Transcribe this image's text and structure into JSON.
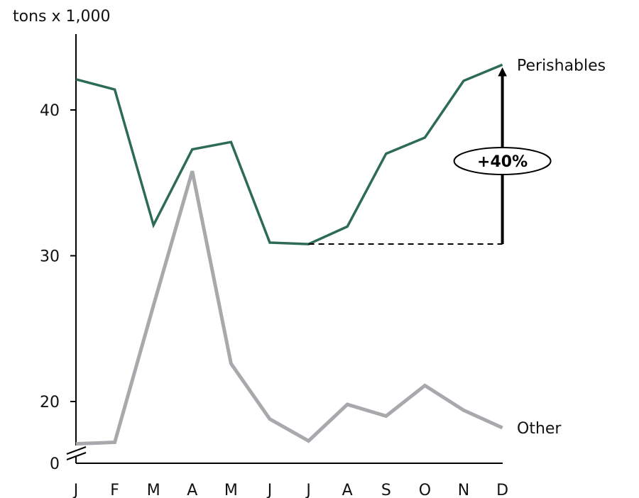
{
  "chart_data": {
    "type": "line",
    "y_unit_label": "tons x 1,000",
    "categories": [
      "J",
      "F",
      "M",
      "A",
      "M",
      "J",
      "J",
      "A",
      "S",
      "O",
      "N",
      "D"
    ],
    "y_ticks": [
      {
        "value": 0,
        "label": "0"
      },
      {
        "value": 20,
        "label": "20"
      },
      {
        "value": 30,
        "label": "30"
      },
      {
        "value": 40,
        "label": "40"
      }
    ],
    "y_axis_break": true,
    "y_break_between": [
      0,
      17
    ],
    "ylim": [
      0,
      45
    ],
    "grid": false,
    "legend": "inline labels at line ends",
    "series": [
      {
        "name": "Perishables",
        "color": "#2e6b55",
        "values": [
          42.1,
          41.4,
          32.1,
          37.3,
          37.8,
          30.9,
          30.8,
          32.0,
          37.0,
          38.1,
          42.0,
          43.1
        ]
      },
      {
        "name": "Other",
        "color": "#a8a9ad",
        "values": [
          17.1,
          17.2,
          26.6,
          35.8,
          22.6,
          18.8,
          17.3,
          19.8,
          19.0,
          21.1,
          19.4,
          18.2
        ]
      }
    ],
    "annotation": {
      "text": "+40%",
      "series": "Perishables",
      "from_category_index": 6,
      "to_category_index": 11
    }
  }
}
